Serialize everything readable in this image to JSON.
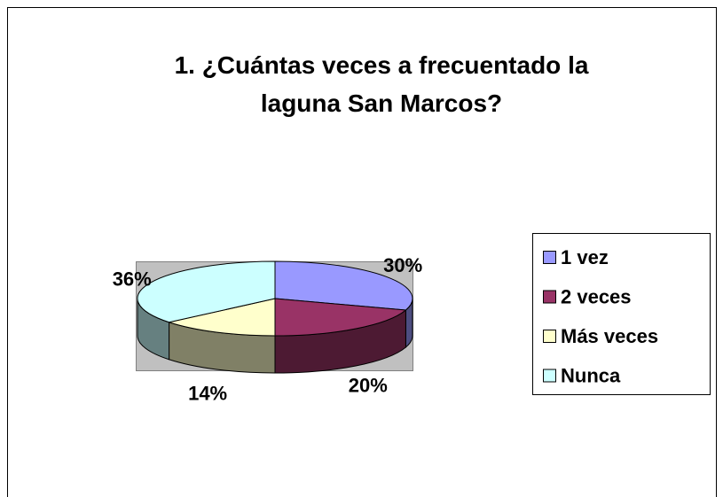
{
  "chart_data": {
    "type": "pie",
    "title": "1. ¿Cuántas veces a frecuentado la laguna San Marcos?",
    "categories": [
      "1 vez",
      "2 veces",
      "Más veces",
      "Nunca"
    ],
    "values": [
      30,
      20,
      14,
      36
    ],
    "value_labels": [
      "30%",
      "20%",
      "14%",
      "36%"
    ],
    "colors": [
      "#9999ff",
      "#993366",
      "#ffffcc",
      "#ccffff"
    ],
    "legend": "right"
  }
}
